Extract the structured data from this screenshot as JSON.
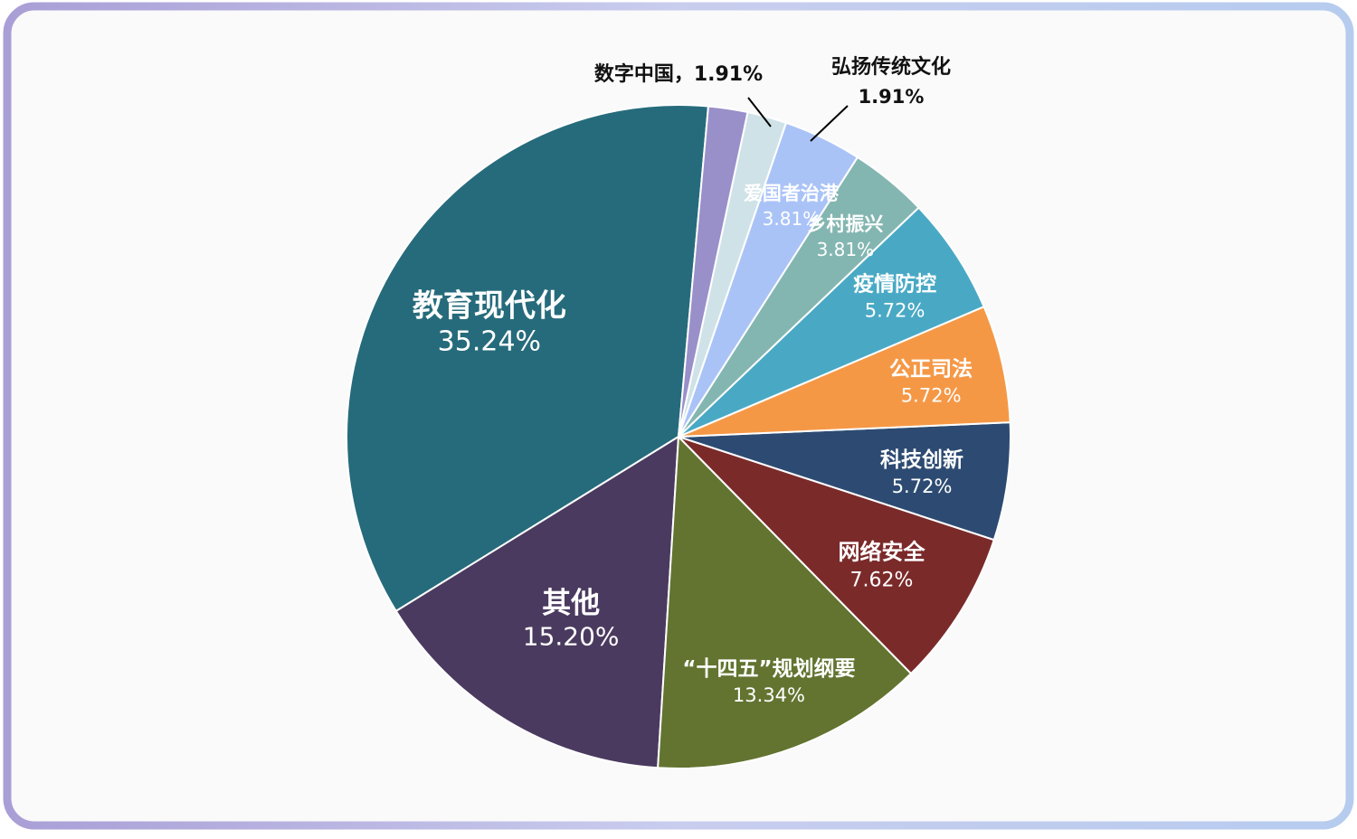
{
  "chart_data": {
    "type": "pie",
    "title": "",
    "slices": [
      {
        "name": "教育现代化",
        "value": 35.24,
        "label": "35.24%",
        "color": "#266b7b"
      },
      {
        "name": "其他",
        "value": 15.2,
        "label": "15.20%",
        "color": "#4b3a5f"
      },
      {
        "name": "“十四五”规划纲要",
        "value": 13.34,
        "label": "13.34%",
        "color": "#627430"
      },
      {
        "name": "网络安全",
        "value": 7.62,
        "label": "7.62%",
        "color": "#7b2a2a"
      },
      {
        "name": "科技创新",
        "value": 5.72,
        "label": "5.72%",
        "color": "#2d4b72"
      },
      {
        "name": "公正司法",
        "value": 5.72,
        "label": "5.72%",
        "color": "#f59846"
      },
      {
        "name": "疫情防控",
        "value": 5.72,
        "label": "5.72%",
        "color": "#49a9c5"
      },
      {
        "name": "乡村振兴",
        "value": 3.81,
        "label": "3.81%",
        "color": "#84b6b1"
      },
      {
        "name": "爱国者治港",
        "value": 3.81,
        "label": "3.81%",
        "color": "#aac3f7"
      },
      {
        "name": "弘扬传统文化",
        "value": 1.91,
        "label": "1.91%",
        "color": "#cfe2e8"
      },
      {
        "name": "数字中国",
        "value": 1.91,
        "label": "1.91%",
        "color": "#998fc9"
      }
    ],
    "outside_labels": {
      "digital_china": "数字中国，1.91%",
      "tradition_name": "弘扬传统文化",
      "tradition_value": "1.91%"
    }
  },
  "colors": {
    "frame_border": "#b7b9e4",
    "background": "#fafafa",
    "leader_line": "#000000"
  }
}
